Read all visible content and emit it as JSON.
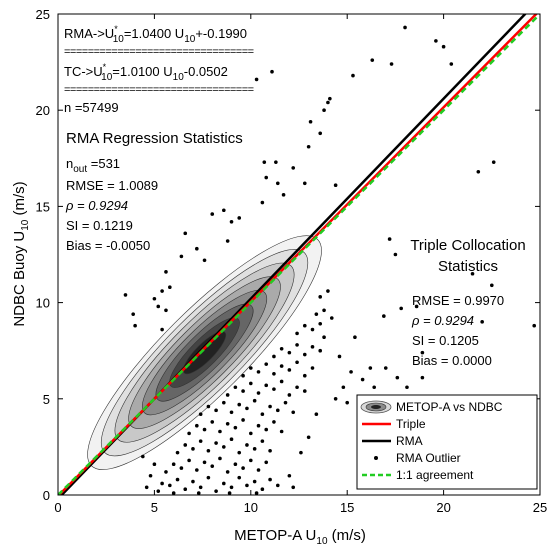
{
  "chart_data": {
    "type": "scatter",
    "xlabel": "METOP-A U",
    "xlabel_sub": "10",
    "xlabel_unit": " (m/s)",
    "ylabel": "NDBC Buoy U",
    "ylabel_sub": "10",
    "ylabel_unit": " (m/s)",
    "xlim": [
      0,
      25
    ],
    "ylim": [
      0,
      25
    ],
    "xticks": [
      "0",
      "5",
      "10",
      "15",
      "20",
      "25"
    ],
    "yticks": [
      "0",
      "5",
      "10",
      "15",
      "20",
      "25"
    ],
    "grid": false,
    "legend_position": "bottom-right",
    "colors": {
      "triple": "#ff0000",
      "rma": "#000000",
      "one_to_one": "#22cc22",
      "outlier": "#000000"
    },
    "lines": {
      "rma": {
        "slope": 1.04,
        "intercept": -0.199
      },
      "triple": {
        "slope": 1.01,
        "intercept": -0.0502
      },
      "one_to_one": {
        "slope": 1.0,
        "intercept": 0.0
      }
    },
    "density_center": [
      7.6,
      7.4
    ],
    "density_levels": 8,
    "outliers": [
      [
        5.0,
        10.2
      ],
      [
        5.4,
        10.6
      ],
      [
        5.6,
        9.6
      ],
      [
        5.2,
        9.8
      ],
      [
        5.8,
        10.8
      ],
      [
        6.4,
        12.4
      ],
      [
        8.0,
        14.6
      ],
      [
        8.6,
        14.8
      ],
      [
        6.6,
        13.6
      ],
      [
        7.2,
        12.8
      ],
      [
        5.4,
        8.6
      ],
      [
        4.0,
        8.8
      ],
      [
        5.6,
        11.6
      ],
      [
        7.6,
        12.2
      ],
      [
        8.8,
        13.2
      ],
      [
        9.0,
        14.2
      ],
      [
        10.6,
        15.2
      ],
      [
        10.8,
        16.5
      ],
      [
        11.4,
        16.2
      ],
      [
        12.2,
        17.0
      ],
      [
        11.7,
        15.6
      ],
      [
        12.8,
        16.2
      ],
      [
        11.3,
        17.3
      ],
      [
        13.8,
        20.0
      ],
      [
        14.0,
        20.4
      ],
      [
        13.6,
        18.8
      ],
      [
        14.4,
        16.1
      ],
      [
        13.1,
        19.4
      ],
      [
        11.1,
        22.0
      ],
      [
        10.3,
        21.6
      ],
      [
        13.0,
        18.1
      ],
      [
        10.7,
        17.3
      ],
      [
        14.1,
        20.6
      ],
      [
        3.9,
        9.4
      ],
      [
        3.5,
        10.4
      ],
      [
        9.4,
        14.4
      ],
      [
        19.6,
        23.6
      ],
      [
        20.0,
        23.3
      ],
      [
        20.4,
        22.4
      ],
      [
        21.8,
        16.8
      ],
      [
        22.6,
        17.3
      ],
      [
        18.0,
        24.3
      ],
      [
        17.3,
        22.4
      ],
      [
        16.3,
        22.6
      ],
      [
        15.3,
        21.8
      ],
      [
        17.2,
        13.3
      ],
      [
        17.5,
        12.5
      ],
      [
        17.8,
        9.7
      ],
      [
        18.6,
        9.8
      ],
      [
        16.9,
        9.3
      ],
      [
        18.9,
        7.4
      ],
      [
        17.0,
        6.6
      ],
      [
        18.1,
        5.6
      ],
      [
        17.6,
        6.1
      ],
      [
        18.9,
        6.1
      ],
      [
        22.5,
        10.9
      ],
      [
        22.0,
        9.0
      ],
      [
        24.7,
        8.8
      ],
      [
        24.7,
        3.8
      ],
      [
        16.4,
        5.6
      ],
      [
        16.2,
        6.6
      ],
      [
        15.8,
        6.0
      ],
      [
        21.5,
        11.5
      ],
      [
        5.2,
        0.2
      ],
      [
        5.4,
        0.6
      ],
      [
        5.8,
        0.5
      ],
      [
        6.2,
        0.8
      ],
      [
        6.6,
        0.3
      ],
      [
        7.0,
        0.7
      ],
      [
        7.4,
        0.4
      ],
      [
        7.8,
        0.9
      ],
      [
        8.2,
        0.2
      ],
      [
        8.6,
        0.6
      ],
      [
        9.0,
        0.4
      ],
      [
        9.4,
        0.9
      ],
      [
        9.8,
        0.5
      ],
      [
        10.2,
        0.7
      ],
      [
        10.6,
        0.3
      ],
      [
        11.0,
        0.8
      ],
      [
        11.4,
        0.5
      ],
      [
        5.6,
        1.2
      ],
      [
        6.0,
        1.6
      ],
      [
        6.4,
        1.4
      ],
      [
        6.8,
        1.8
      ],
      [
        7.2,
        1.3
      ],
      [
        7.6,
        1.7
      ],
      [
        8.0,
        1.5
      ],
      [
        8.4,
        1.9
      ],
      [
        8.8,
        1.2
      ],
      [
        9.2,
        1.6
      ],
      [
        9.6,
        1.4
      ],
      [
        10.0,
        1.8
      ],
      [
        10.4,
        1.3
      ],
      [
        10.8,
        1.7
      ],
      [
        6.2,
        2.2
      ],
      [
        6.6,
        2.6
      ],
      [
        7.0,
        2.4
      ],
      [
        7.4,
        2.8
      ],
      [
        7.8,
        2.3
      ],
      [
        8.2,
        2.7
      ],
      [
        8.6,
        2.5
      ],
      [
        9.0,
        2.9
      ],
      [
        9.4,
        2.2
      ],
      [
        9.8,
        2.6
      ],
      [
        10.2,
        2.4
      ],
      [
        10.6,
        2.8
      ],
      [
        11.0,
        2.3
      ],
      [
        6.8,
        3.2
      ],
      [
        7.2,
        3.6
      ],
      [
        7.6,
        3.4
      ],
      [
        8.0,
        3.8
      ],
      [
        8.4,
        3.3
      ],
      [
        8.8,
        3.7
      ],
      [
        9.2,
        3.5
      ],
      [
        9.6,
        3.9
      ],
      [
        10.0,
        3.2
      ],
      [
        10.4,
        3.6
      ],
      [
        10.8,
        3.4
      ],
      [
        11.2,
        3.8
      ],
      [
        11.6,
        3.3
      ],
      [
        7.4,
        4.2
      ],
      [
        7.8,
        4.6
      ],
      [
        8.2,
        4.4
      ],
      [
        8.6,
        4.8
      ],
      [
        9.0,
        4.3
      ],
      [
        9.4,
        4.7
      ],
      [
        9.8,
        4.5
      ],
      [
        10.2,
        4.9
      ],
      [
        10.6,
        4.2
      ],
      [
        11.0,
        4.6
      ],
      [
        11.4,
        4.4
      ],
      [
        11.8,
        4.8
      ],
      [
        12.2,
        4.3
      ],
      [
        8.8,
        5.2
      ],
      [
        9.2,
        5.6
      ],
      [
        9.6,
        5.4
      ],
      [
        10.0,
        5.8
      ],
      [
        10.4,
        5.3
      ],
      [
        10.8,
        5.7
      ],
      [
        11.2,
        5.5
      ],
      [
        11.6,
        5.9
      ],
      [
        12.0,
        5.2
      ],
      [
        12.4,
        5.6
      ],
      [
        12.8,
        5.4
      ],
      [
        9.6,
        6.2
      ],
      [
        10.0,
        6.6
      ],
      [
        10.4,
        6.4
      ],
      [
        10.8,
        6.8
      ],
      [
        11.2,
        6.3
      ],
      [
        11.6,
        6.7
      ],
      [
        12.0,
        6.5
      ],
      [
        12.4,
        6.9
      ],
      [
        12.8,
        6.2
      ],
      [
        13.2,
        6.6
      ],
      [
        11.2,
        7.2
      ],
      [
        11.6,
        7.6
      ],
      [
        12.0,
        7.4
      ],
      [
        12.4,
        7.8
      ],
      [
        12.8,
        7.3
      ],
      [
        13.2,
        7.7
      ],
      [
        13.6,
        7.5
      ],
      [
        12.4,
        8.4
      ],
      [
        12.8,
        8.8
      ],
      [
        13.2,
        8.6
      ],
      [
        13.6,
        8.9
      ],
      [
        13.8,
        8.2
      ],
      [
        13.4,
        9.4
      ],
      [
        13.8,
        9.6
      ],
      [
        14.2,
        9.2
      ],
      [
        13.6,
        10.3
      ],
      [
        14.0,
        10.6
      ],
      [
        4.6,
        0.4
      ],
      [
        4.8,
        1.0
      ],
      [
        5.0,
        1.6
      ],
      [
        4.4,
        2.0
      ],
      [
        12.0,
        1.0
      ],
      [
        12.6,
        2.2
      ],
      [
        13.0,
        3.0
      ],
      [
        12.2,
        0.4
      ],
      [
        13.4,
        4.2
      ],
      [
        14.4,
        5.0
      ],
      [
        14.8,
        5.6
      ],
      [
        15.2,
        6.4
      ],
      [
        15.0,
        4.8
      ],
      [
        14.6,
        7.2
      ],
      [
        15.4,
        8.2
      ],
      [
        6.0,
        0.1
      ],
      [
        7.3,
        0.1
      ],
      [
        8.9,
        0.1
      ],
      [
        10.3,
        0.1
      ]
    ],
    "annotations": {
      "rma_eq_pre": "RMA->U",
      "rma_eq_sub1": "10",
      "rma_eq_mid": "=1.0400 U",
      "rma_eq_sub2": "10",
      "rma_eq_post": "+-0.1990",
      "tc_eq_pre": "TC->U",
      "tc_eq_sub1": "10",
      "tc_eq_mid": "=1.0100 U",
      "tc_eq_sub2": "10",
      "tc_eq_post": "-0.0502",
      "superscript": "*",
      "separator": "================================",
      "n_text": "n =57499",
      "rma_stats_title": "RMA Regression Statistics",
      "nout_pre": "n",
      "nout_sub": "out",
      "nout_post": " =531",
      "rma_rmse": "RMSE = 1.0089",
      "rma_rho": "ρ = 0.9294",
      "rma_si": "SI = 0.1219",
      "rma_bias": "Bias = -0.0050",
      "tc_title_1": "Triple Collocation",
      "tc_title_2": "Statistics",
      "tc_rmse": "RMSE = 0.9970",
      "tc_rho": "ρ = 0.9294",
      "tc_si": "SI = 0.1205",
      "tc_bias": "Bias = 0.0000"
    },
    "legend": [
      {
        "key": "density",
        "label": "METOP-A vs NDBC"
      },
      {
        "key": "triple",
        "label": "Triple"
      },
      {
        "key": "rma",
        "label": "RMA"
      },
      {
        "key": "outlier",
        "label": "RMA Outlier"
      },
      {
        "key": "one_to_one",
        "label": "1:1 agreement"
      }
    ]
  }
}
